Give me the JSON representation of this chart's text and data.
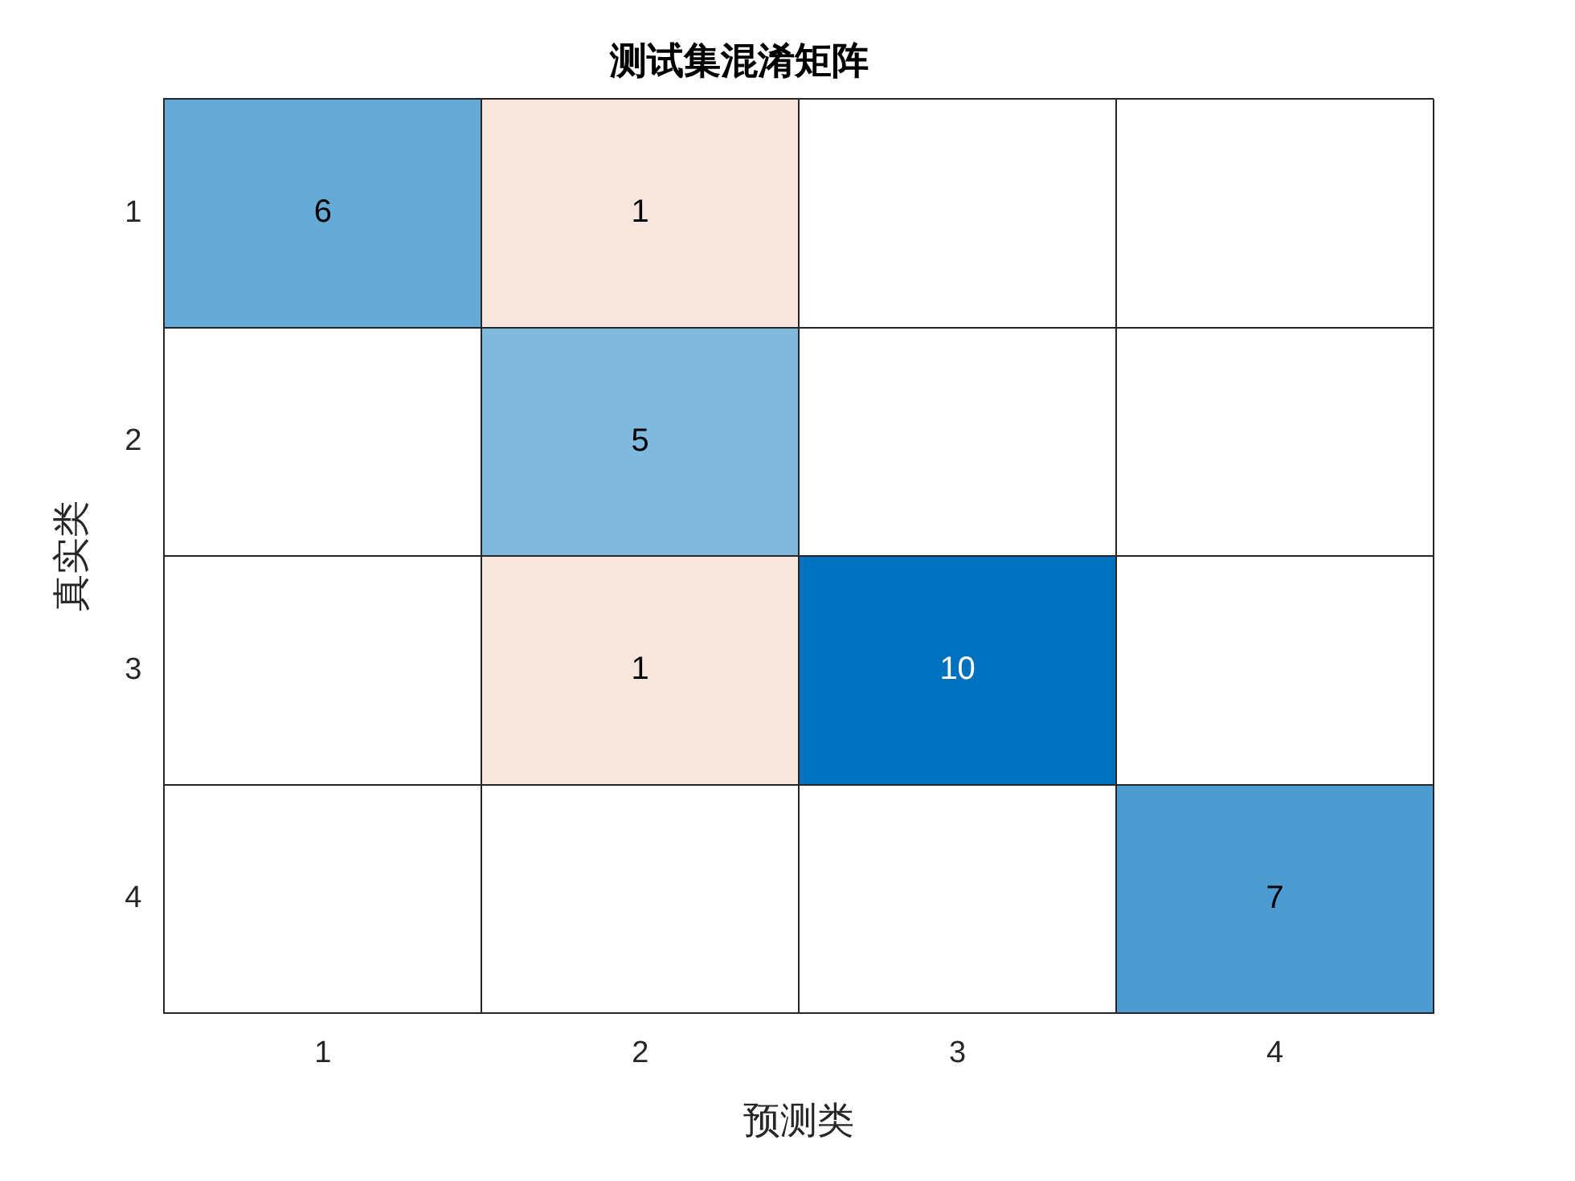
{
  "chart_data": {
    "type": "heatmap",
    "title": "测试集混淆矩阵",
    "xlabel": "预测类",
    "ylabel": "真实类",
    "categories": [
      "1",
      "2",
      "3",
      "4"
    ],
    "y_categories": [
      "1",
      "2",
      "3",
      "4"
    ],
    "cells": [
      [
        6,
        1,
        null,
        null
      ],
      [
        null,
        5,
        null,
        null
      ],
      [
        null,
        1,
        10,
        null
      ],
      [
        null,
        null,
        null,
        7
      ]
    ],
    "grid": true,
    "data_labels": true
  }
}
